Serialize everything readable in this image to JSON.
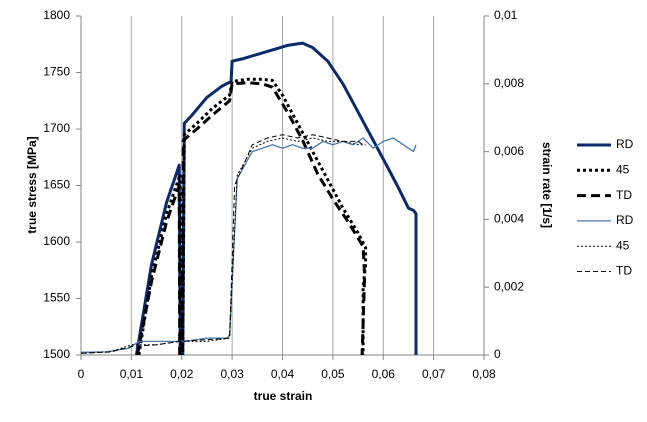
{
  "chart_data": {
    "type": "line",
    "xlabel": "true strain",
    "ylabel": "true stress [MPa]",
    "y2label": "strain rate [1/s]",
    "xlim": [
      0,
      0.08
    ],
    "xticks": [
      0,
      {
        "value": 0.01,
        "label": "0,01"
      },
      {
        "value": 0.02,
        "label": "0,02"
      },
      {
        "value": 0.03,
        "label": "0,03"
      },
      {
        "value": 0.04,
        "label": "0,04"
      },
      {
        "value": 0.05,
        "label": "0,05"
      },
      {
        "value": 0.06,
        "label": "0,06"
      },
      {
        "value": 0.07,
        "label": "0,07"
      },
      {
        "value": 0.08,
        "label": "0,08"
      }
    ],
    "ylim": [
      1500,
      1800
    ],
    "yticks": [
      1500,
      1550,
      1600,
      1650,
      1700,
      1750,
      1800
    ],
    "y2lim": [
      0,
      0.01
    ],
    "y2ticks": [
      0,
      {
        "value": 0.002,
        "label": "0,002"
      },
      {
        "value": 0.004,
        "label": "0,004"
      },
      {
        "value": 0.006,
        "label": "0,006"
      },
      {
        "value": 0.008,
        "label": "0,008"
      },
      {
        "value": 0.01,
        "label": "0,01"
      }
    ],
    "grid": "x",
    "legend": "right",
    "series": [
      {
        "name": "RD",
        "color": "#0b2a6b",
        "style": "solid",
        "width": 3,
        "x": [
          0.011,
          0.014,
          0.017,
          0.0195,
          0.0197,
          0.0202,
          0.0205,
          0.022,
          0.025,
          0.028,
          0.0298,
          0.03,
          0.032,
          0.035,
          0.038,
          0.041,
          0.044,
          0.046,
          0.049,
          0.052,
          0.055,
          0.058,
          0.061,
          0.063,
          0.065,
          0.066,
          0.0665,
          0.0665
        ],
        "values": [
          1500,
          1580,
          1635,
          1668,
          1500,
          1500,
          1705,
          1712,
          1728,
          1738,
          1742,
          1760,
          1762,
          1766,
          1770,
          1774,
          1776,
          1772,
          1760,
          1740,
          1715,
          1690,
          1665,
          1648,
          1630,
          1628,
          1625,
          1500
        ]
      },
      {
        "name": "45",
        "color": "#000000",
        "style": "dotted",
        "width": 3,
        "x": [
          0.0115,
          0.014,
          0.017,
          0.0197,
          0.0198,
          0.0202,
          0.0205,
          0.023,
          0.026,
          0.0295,
          0.03,
          0.033,
          0.036,
          0.038,
          0.04,
          0.043,
          0.046,
          0.049,
          0.052,
          0.055,
          0.0565,
          0.0565,
          0.056,
          0.056
        ],
        "values": [
          1500,
          1570,
          1625,
          1660,
          1500,
          1500,
          1695,
          1705,
          1718,
          1730,
          1742,
          1744,
          1744,
          1743,
          1730,
          1705,
          1680,
          1655,
          1630,
          1608,
          1595,
          1580,
          1560,
          1500
        ]
      },
      {
        "name": "TD",
        "color": "#000000",
        "style": "dashed",
        "width": 3,
        "x": [
          0.0112,
          0.014,
          0.017,
          0.0195,
          0.0196,
          0.0201,
          0.0203,
          0.023,
          0.026,
          0.0295,
          0.03,
          0.033,
          0.036,
          0.038,
          0.041,
          0.044,
          0.047,
          0.05,
          0.053,
          0.056,
          0.0563,
          0.0558
        ],
        "values": [
          1500,
          1565,
          1618,
          1650,
          1500,
          1500,
          1690,
          1700,
          1712,
          1725,
          1740,
          1741,
          1740,
          1737,
          1715,
          1690,
          1660,
          1638,
          1618,
          1596,
          1570,
          1500
        ]
      },
      {
        "name": "RD",
        "color": "#4a7ab5",
        "style": "solid",
        "width": 1.3,
        "axis": "y2",
        "x": [
          0,
          0.005,
          0.0095,
          0.0115,
          0.015,
          0.0195,
          0.0205,
          0.025,
          0.029,
          0.0295,
          0.031,
          0.034,
          0.036,
          0.038,
          0.04,
          0.042,
          0.044,
          0.046,
          0.048,
          0.05,
          0.052,
          0.054,
          0.056,
          0.058,
          0.06,
          0.062,
          0.064,
          0.066,
          0.0665
        ],
        "values": [
          8e-05,
          9e-05,
          0.0002,
          0.0004,
          0.0004,
          0.0004,
          0.0004,
          0.0005,
          0.0005,
          0.0006,
          0.0052,
          0.006,
          0.0061,
          0.0062,
          0.0061,
          0.0062,
          0.0061,
          0.0061,
          0.0063,
          0.0062,
          0.0063,
          0.0062,
          0.0064,
          0.0061,
          0.0063,
          0.0064,
          0.0062,
          0.006,
          0.0062
        ]
      },
      {
        "name": "45",
        "color": "#000000",
        "style": "dotted",
        "width": 1,
        "axis": "y2",
        "x": [
          0,
          0.006,
          0.01,
          0.015,
          0.0195,
          0.025,
          0.0295,
          0.031,
          0.034,
          0.037,
          0.04,
          0.043,
          0.046,
          0.049,
          0.052,
          0.055,
          0.0565
        ],
        "values": [
          5e-05,
          0.0001,
          0.0003,
          0.0003,
          0.0004,
          0.0004,
          0.0005,
          0.0053,
          0.0061,
          0.0063,
          0.0064,
          0.0063,
          0.0064,
          0.0063,
          0.0063,
          0.0062,
          0.0062
        ]
      },
      {
        "name": "TD",
        "color": "#000000",
        "style": "dashed",
        "width": 1,
        "axis": "y2",
        "x": [
          0,
          0.006,
          0.01,
          0.015,
          0.0195,
          0.025,
          0.0295,
          0.0305,
          0.034,
          0.037,
          0.04,
          0.043,
          0.046,
          0.049,
          0.052,
          0.055,
          0.056
        ],
        "values": [
          5e-05,
          9e-05,
          0.00025,
          0.0003,
          0.0004,
          0.00045,
          0.0005,
          0.005,
          0.0062,
          0.0064,
          0.0065,
          0.0064,
          0.0065,
          0.0064,
          0.0063,
          0.0063,
          0.0062
        ]
      }
    ]
  }
}
